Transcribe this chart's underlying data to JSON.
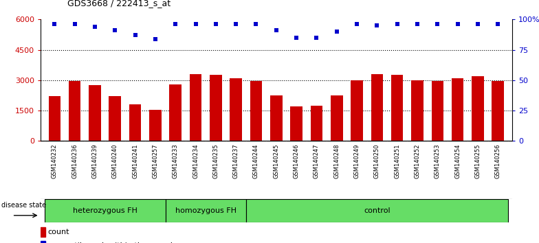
{
  "title": "GDS3668 / 222413_s_at",
  "samples": [
    "GSM140232",
    "GSM140236",
    "GSM140239",
    "GSM140240",
    "GSM140241",
    "GSM140257",
    "GSM140233",
    "GSM140234",
    "GSM140235",
    "GSM140237",
    "GSM140244",
    "GSM140245",
    "GSM140246",
    "GSM140247",
    "GSM140248",
    "GSM140249",
    "GSM140250",
    "GSM140251",
    "GSM140252",
    "GSM140253",
    "GSM140254",
    "GSM140255",
    "GSM140256"
  ],
  "counts": [
    2200,
    2950,
    2750,
    2200,
    1800,
    1550,
    2800,
    3300,
    3250,
    3100,
    2950,
    2250,
    1700,
    1750,
    2250,
    3000,
    3300,
    3250,
    3000,
    2950,
    3100,
    3200,
    2950
  ],
  "percentile_ranks": [
    96,
    96,
    94,
    91,
    87,
    84,
    96,
    96,
    96,
    96,
    96,
    91,
    85,
    85,
    90,
    96,
    95,
    96,
    96,
    96,
    96,
    96,
    96
  ],
  "bar_color": "#CC0000",
  "dot_color": "#0000CC",
  "ylim_left": [
    0,
    6000
  ],
  "yticks_left": [
    0,
    1500,
    3000,
    4500,
    6000
  ],
  "ytick_labels_left": [
    "0",
    "1500",
    "3000",
    "4500",
    "6000"
  ],
  "ylim_right": [
    0,
    100
  ],
  "yticks_right": [
    0,
    25,
    50,
    75,
    100
  ],
  "ytick_labels_right": [
    "0",
    "25",
    "50",
    "75",
    "100%"
  ],
  "group_info": [
    {
      "label": "heterozygous FH",
      "start": 0,
      "end": 5
    },
    {
      "label": "homozygous FH",
      "start": 6,
      "end": 9
    },
    {
      "label": "control",
      "start": 10,
      "end": 22
    }
  ],
  "group_color": "#66DD66",
  "xlabel_bg_color": "#C8C8C8",
  "plot_bg_color": "#FFFFFF"
}
